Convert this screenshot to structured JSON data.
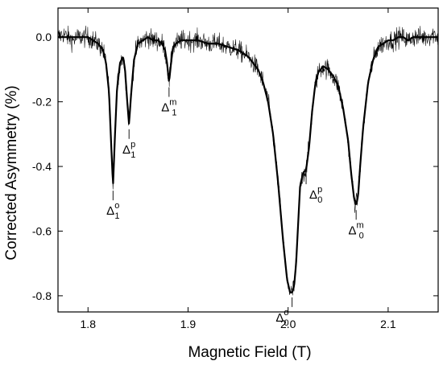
{
  "chart_data": {
    "type": "line",
    "title": "",
    "xlabel": "Magnetic Field (T)",
    "ylabel": "Corrected Asymmetry (%)",
    "xlim": [
      1.77,
      2.15
    ],
    "ylim": [
      -0.85,
      0.09
    ],
    "xticks": [
      1.8,
      1.9,
      2.0,
      2.1
    ],
    "xtick_labels": [
      "1.8",
      "1.9",
      "2.0",
      "2.1"
    ],
    "yticks": [
      0.0,
      -0.2,
      -0.4,
      -0.6,
      -0.8
    ],
    "ytick_labels": [
      "0.0",
      "-0.2",
      "-0.4",
      "-0.6",
      "-0.8"
    ],
    "grid": false,
    "legend": "none",
    "series": [
      {
        "kind": "data",
        "style": "noisy",
        "color": "#000000",
        "x": [
          1.77,
          1.775,
          1.78,
          1.785,
          1.79,
          1.795,
          1.8,
          1.805,
          1.81,
          1.815,
          1.818,
          1.821,
          1.823,
          1.825,
          1.827,
          1.829,
          1.832,
          1.835,
          1.837,
          1.839,
          1.841,
          1.843,
          1.846,
          1.85,
          1.855,
          1.86,
          1.865,
          1.87,
          1.874,
          1.877,
          1.879,
          1.881,
          1.883,
          1.885,
          1.888,
          1.893,
          1.9,
          1.91,
          1.92,
          1.93,
          1.94,
          1.95,
          1.96,
          1.97,
          1.975,
          1.98,
          1.985,
          1.99,
          1.995,
          1.999,
          2.002,
          2.004,
          2.006,
          2.008,
          2.01,
          2.012,
          2.015,
          2.018,
          2.021,
          2.024,
          2.027,
          2.03,
          2.035,
          2.04,
          2.045,
          2.05,
          2.055,
          2.06,
          2.063,
          2.066,
          2.068,
          2.07,
          2.072,
          2.075,
          2.08,
          2.085,
          2.09,
          2.095,
          2.1,
          2.105,
          2.11,
          2.115,
          2.12,
          2.125,
          2.13,
          2.135,
          2.14,
          2.145,
          2.15
        ],
        "y": [
          0.0,
          0.01,
          0.0,
          -0.01,
          0.0,
          0.0,
          0.0,
          -0.01,
          -0.02,
          -0.04,
          -0.08,
          -0.17,
          -0.32,
          -0.46,
          -0.3,
          -0.16,
          -0.08,
          -0.06,
          -0.1,
          -0.19,
          -0.27,
          -0.18,
          -0.07,
          -0.02,
          -0.01,
          0.0,
          -0.01,
          -0.01,
          -0.02,
          -0.04,
          -0.08,
          -0.14,
          -0.08,
          -0.03,
          -0.02,
          -0.01,
          -0.01,
          -0.01,
          -0.02,
          -0.02,
          -0.03,
          -0.04,
          -0.06,
          -0.1,
          -0.14,
          -0.2,
          -0.3,
          -0.45,
          -0.63,
          -0.75,
          -0.79,
          -0.79,
          -0.77,
          -0.7,
          -0.58,
          -0.46,
          -0.42,
          -0.41,
          -0.34,
          -0.23,
          -0.15,
          -0.11,
          -0.09,
          -0.1,
          -0.12,
          -0.15,
          -0.22,
          -0.32,
          -0.42,
          -0.5,
          -0.52,
          -0.49,
          -0.4,
          -0.28,
          -0.14,
          -0.07,
          -0.03,
          -0.02,
          -0.01,
          -0.01,
          0.0,
          0.0,
          -0.01,
          0.0,
          0.0,
          0.0,
          0.0,
          0.01,
          0.0
        ]
      },
      {
        "kind": "fit",
        "style": "smooth",
        "color": "#000000",
        "x": [
          1.77,
          1.775,
          1.78,
          1.785,
          1.79,
          1.795,
          1.8,
          1.805,
          1.81,
          1.815,
          1.818,
          1.821,
          1.823,
          1.825,
          1.827,
          1.829,
          1.832,
          1.835,
          1.837,
          1.839,
          1.841,
          1.843,
          1.846,
          1.85,
          1.855,
          1.86,
          1.865,
          1.87,
          1.874,
          1.877,
          1.879,
          1.881,
          1.883,
          1.885,
          1.888,
          1.893,
          1.9,
          1.91,
          1.92,
          1.93,
          1.94,
          1.95,
          1.96,
          1.97,
          1.975,
          1.98,
          1.985,
          1.99,
          1.995,
          1.999,
          2.002,
          2.004,
          2.006,
          2.008,
          2.01,
          2.012,
          2.015,
          2.018,
          2.021,
          2.024,
          2.027,
          2.03,
          2.035,
          2.04,
          2.045,
          2.05,
          2.055,
          2.06,
          2.063,
          2.066,
          2.068,
          2.07,
          2.072,
          2.075,
          2.08,
          2.085,
          2.09,
          2.095,
          2.1,
          2.105,
          2.11,
          2.115,
          2.12,
          2.125,
          2.13,
          2.135,
          2.14,
          2.145,
          2.15
        ],
        "y": [
          0.0,
          0.0,
          0.0,
          0.0,
          0.0,
          0.0,
          0.0,
          -0.01,
          -0.02,
          -0.04,
          -0.08,
          -0.17,
          -0.32,
          -0.46,
          -0.3,
          -0.16,
          -0.08,
          -0.06,
          -0.1,
          -0.19,
          -0.27,
          -0.18,
          -0.07,
          -0.02,
          -0.01,
          0.0,
          -0.01,
          -0.01,
          -0.02,
          -0.04,
          -0.08,
          -0.14,
          -0.08,
          -0.03,
          -0.02,
          -0.01,
          -0.01,
          -0.01,
          -0.02,
          -0.02,
          -0.03,
          -0.04,
          -0.06,
          -0.1,
          -0.14,
          -0.2,
          -0.3,
          -0.45,
          -0.63,
          -0.75,
          -0.79,
          -0.79,
          -0.77,
          -0.7,
          -0.58,
          -0.46,
          -0.42,
          -0.41,
          -0.34,
          -0.23,
          -0.15,
          -0.11,
          -0.09,
          -0.1,
          -0.12,
          -0.15,
          -0.22,
          -0.32,
          -0.42,
          -0.5,
          -0.52,
          -0.49,
          -0.4,
          -0.28,
          -0.14,
          -0.07,
          -0.03,
          -0.02,
          -0.01,
          -0.01,
          0.0,
          0.0,
          -0.01,
          0.0,
          0.0,
          0.0,
          0.0,
          0.0,
          0.0
        ]
      }
    ],
    "annotations": [
      {
        "id": "d1o",
        "base": "Δ",
        "sub": "1",
        "sup": "o",
        "x": 1.825,
        "y": -0.46,
        "label_pos": "below"
      },
      {
        "id": "d1p",
        "base": "Δ",
        "sub": "1",
        "sup": "p",
        "x": 1.841,
        "y": -0.27,
        "label_pos": "below"
      },
      {
        "id": "d1m",
        "base": "Δ",
        "sub": "1",
        "sup": "m",
        "x": 1.881,
        "y": -0.14,
        "label_pos": "below"
      },
      {
        "id": "d0o",
        "base": "Δ",
        "sub": "0",
        "sup": "o",
        "x": 2.004,
        "y": -0.79,
        "label_pos": "below-left"
      },
      {
        "id": "d0p",
        "base": "Δ",
        "sub": "0",
        "sup": "p",
        "x": 2.018,
        "y": -0.41,
        "label_pos": "below-right"
      },
      {
        "id": "d0m",
        "base": "Δ",
        "sub": "0",
        "sup": "m",
        "x": 2.068,
        "y": -0.52,
        "label_pos": "below"
      }
    ]
  }
}
